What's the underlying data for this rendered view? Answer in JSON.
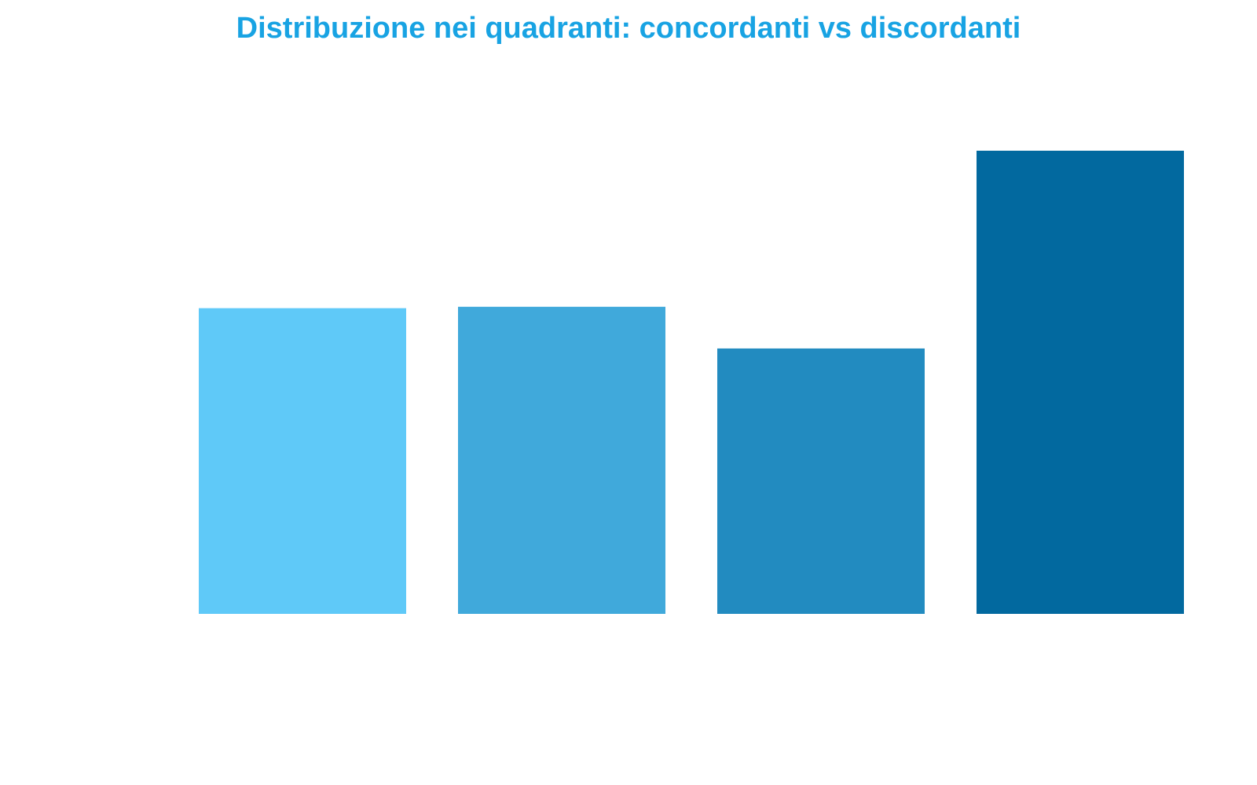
{
  "chart_data": {
    "type": "bar",
    "title": "Distribuzione nei quadranti: concordanti vs discordanti",
    "categories": [
      "",
      "",
      "",
      ""
    ],
    "values": [
      66,
      66.3,
      57.3,
      100
    ],
    "ylim": [
      0,
      100
    ],
    "xlabel": "",
    "ylabel": "",
    "grid": false,
    "legend": "none",
    "colors": [
      "#5fc9f8",
      "#40a9db",
      "#228bc0",
      "#02699f"
    ],
    "title_color": "#18a3e3"
  }
}
